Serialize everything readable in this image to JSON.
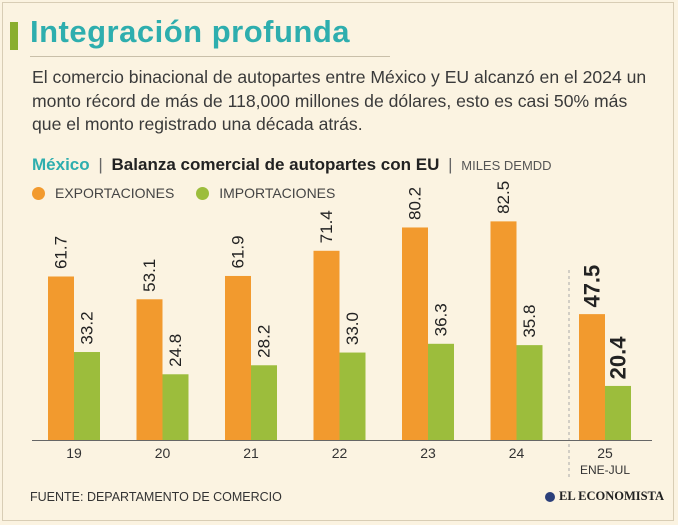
{
  "header": {
    "title": "Integración profunda",
    "intro": "El comercio binacional de autopartes entre México y EU alcanzó en el 2024 un monto récord de más de 118,000 millones de dólares, esto es casi 50% más que el monto registrado una década atrás."
  },
  "subtitle": {
    "country": "México",
    "separator": "|",
    "main": "Balanza comercial de autopartes con EU",
    "unit": "MILES DEMDD"
  },
  "legend": {
    "exports": "EXPORTACIONES",
    "imports": "IMPORTACIONES"
  },
  "colors": {
    "exports": "#f29a2e",
    "imports": "#9cbd3c",
    "title": "#2eaeae"
  },
  "chart_data": {
    "type": "bar",
    "title": "Balanza comercial de autopartes con EU",
    "ylabel": "Miles de millones de dólares",
    "categories": [
      "19",
      "20",
      "21",
      "22",
      "23",
      "24",
      "25"
    ],
    "category_sublabels": [
      "",
      "",
      "",
      "",
      "",
      "",
      "ENE-JUL"
    ],
    "series": [
      {
        "name": "EXPORTACIONES",
        "values": [
          61.7,
          53.1,
          61.9,
          71.4,
          80.2,
          82.5,
          47.5
        ]
      },
      {
        "name": "IMPORTACIONES",
        "values": [
          33.2,
          24.8,
          28.2,
          33.0,
          36.3,
          35.8,
          20.4
        ]
      }
    ],
    "ylim": [
      0,
      90
    ],
    "grid": false,
    "highlight_last": true,
    "labels": [
      [
        "61.7",
        "53.1",
        "61.9",
        "71.4",
        "80.2",
        "82.5",
        "47.5"
      ],
      [
        "33.2",
        "24.8",
        "28.2",
        "33.0",
        "36.3",
        "35.8",
        "20.4"
      ]
    ]
  },
  "footer": {
    "source": "FUENTE: DEPARTAMENTO DE COMERCIO",
    "brand": "EL ECONOMISTA"
  }
}
